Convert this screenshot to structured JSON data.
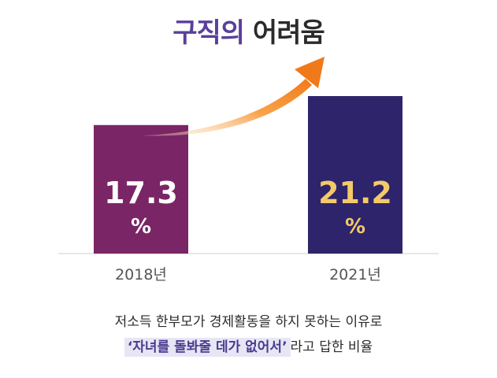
{
  "title": {
    "accent": "구직의",
    "rest": "어려움"
  },
  "chart_data": {
    "type": "bar",
    "categories": [
      "2018년",
      "2021년"
    ],
    "values": [
      17.3,
      21.2
    ],
    "value_labels": [
      "17.3",
      "21.2"
    ],
    "unit": "%",
    "bar_colors": [
      "#7a2566",
      "#2e246b"
    ],
    "value_colors": [
      "#ffffff",
      "#f4c96a"
    ],
    "ylim": [
      0,
      25
    ],
    "grid": false,
    "trend_arrow": true,
    "arrow_color": "#f07a1a"
  },
  "caption": {
    "line1": "저소득 한부모가 경제활동을 하지 못하는 이유로",
    "highlight": "‘자녀를 돌봐줄 데가 없어서’",
    "line2_rest": "라고 답한 비율"
  }
}
